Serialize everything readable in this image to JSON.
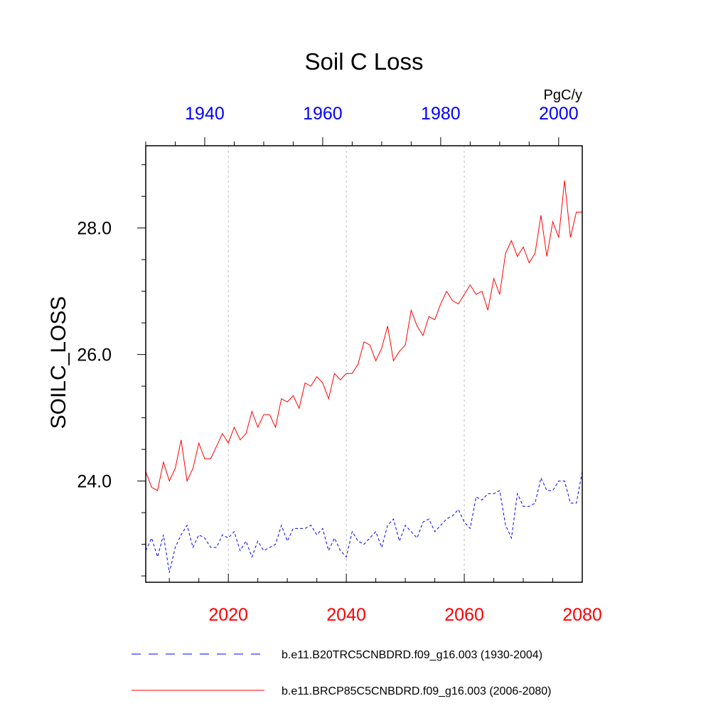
{
  "chart_data": {
    "type": "line",
    "title": "Soil C Loss",
    "ylabel": "SOILC_LOSS",
    "units": "PgC/y",
    "ylim": [
      22.4,
      29.3
    ],
    "y_ticks": [
      {
        "value": 24.0,
        "label": "24.0"
      },
      {
        "value": 26.0,
        "label": "26.0"
      },
      {
        "value": 28.0,
        "label": "28.0"
      }
    ],
    "bottom_axis": {
      "range": [
        2006,
        2080
      ],
      "ticks": [
        {
          "value": 2020,
          "label": "2020"
        },
        {
          "value": 2040,
          "label": "2040"
        },
        {
          "value": 2060,
          "label": "2060"
        },
        {
          "value": 2080,
          "label": "2080"
        }
      ],
      "color": "#ff0000"
    },
    "top_axis": {
      "range": [
        1930,
        2004
      ],
      "ticks": [
        {
          "value": 1940,
          "label": "1940"
        },
        {
          "value": 1960,
          "label": "1960"
        },
        {
          "value": 1980,
          "label": "1980"
        },
        {
          "value": 2000,
          "label": "2000"
        }
      ],
      "color": "#0000ff"
    },
    "grid": "vertical dashed at major ticks",
    "legend_position": "bottom",
    "series": [
      {
        "name": "b.e11.B20TRC5CNBDRD.f09_g16.003 (1930-2004)",
        "axis": "top",
        "x_start": 1930,
        "x_end": 2004,
        "style": "dashed",
        "color": "#0000ff",
        "values": [
          22.9,
          23.1,
          22.8,
          23.15,
          22.55,
          22.95,
          23.15,
          23.3,
          22.95,
          23.15,
          23.1,
          22.95,
          22.95,
          23.15,
          23.1,
          23.2,
          22.9,
          23.05,
          22.8,
          23.05,
          22.9,
          22.95,
          23.0,
          23.3,
          23.05,
          23.25,
          23.25,
          23.25,
          23.3,
          23.15,
          23.25,
          22.9,
          23.1,
          22.9,
          22.8,
          23.2,
          23.05,
          23.0,
          23.1,
          23.2,
          22.95,
          23.3,
          23.4,
          23.05,
          23.3,
          23.2,
          23.1,
          23.35,
          23.4,
          23.2,
          23.3,
          23.4,
          23.45,
          23.55,
          23.35,
          23.25,
          23.75,
          23.7,
          23.8,
          23.8,
          23.85,
          23.3,
          23.1,
          23.8,
          23.6,
          23.6,
          23.65,
          24.05,
          23.85,
          23.85,
          24.0,
          24.0,
          23.65,
          23.65,
          24.15
        ]
      },
      {
        "name": "b.e11.BRCP85C5CNBDRD.f09_g16.003 (2006-2080)",
        "axis": "bottom",
        "x_start": 2006,
        "x_end": 2080,
        "style": "solid",
        "color": "#ff0000",
        "values": [
          24.15,
          23.9,
          23.85,
          24.3,
          24.0,
          24.2,
          24.65,
          24.0,
          24.2,
          24.6,
          24.35,
          24.35,
          24.55,
          24.75,
          24.6,
          24.85,
          24.65,
          24.75,
          25.1,
          24.85,
          25.05,
          25.05,
          24.85,
          25.3,
          25.25,
          25.35,
          25.15,
          25.55,
          25.5,
          25.65,
          25.55,
          25.3,
          25.7,
          25.6,
          25.7,
          25.7,
          25.85,
          26.2,
          26.15,
          25.9,
          26.1,
          26.45,
          25.9,
          26.05,
          26.15,
          26.7,
          26.45,
          26.3,
          26.6,
          26.55,
          26.8,
          27.0,
          26.85,
          26.8,
          26.95,
          27.1,
          26.95,
          27.0,
          26.7,
          27.2,
          26.95,
          27.6,
          27.8,
          27.55,
          27.7,
          27.45,
          27.6,
          28.2,
          27.55,
          28.1,
          27.85,
          28.75,
          27.85,
          28.25,
          28.25
        ]
      }
    ]
  },
  "legend": [
    {
      "label": "b.e11.B20TRC5CNBDRD.f09_g16.003 (1930-2004)",
      "style": "dashed",
      "color": "#0000ff"
    },
    {
      "label": "b.e11.BRCP85C5CNBDRD.f09_g16.003 (2006-2080)",
      "style": "solid",
      "color": "#ff0000"
    }
  ]
}
